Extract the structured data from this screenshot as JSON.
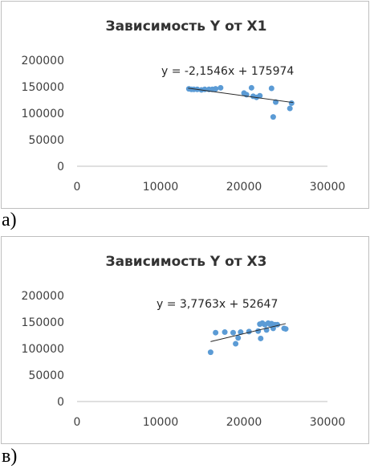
{
  "chart_data": [
    {
      "type": "scatter",
      "title": "Зависимость Y от X1",
      "xlabel": "",
      "ylabel": "",
      "xlim": [
        0,
        30000
      ],
      "ylim": [
        0,
        200000
      ],
      "x_ticks": [
        "0",
        "10000",
        "20000",
        "30000"
      ],
      "y_ticks": [
        "0",
        "50000",
        "100000",
        "150000",
        "200000"
      ],
      "trend_equation": "y = -2,1546x + 175974",
      "trend": {
        "slope": -2.1546,
        "intercept": 175974,
        "x_range": [
          13300,
          25900
        ]
      },
      "grid": false,
      "legend": "none",
      "points": [
        {
          "x": 13400,
          "y": 146000
        },
        {
          "x": 13700,
          "y": 145000
        },
        {
          "x": 14000,
          "y": 145000
        },
        {
          "x": 14400,
          "y": 145000
        },
        {
          "x": 14900,
          "y": 144000
        },
        {
          "x": 15300,
          "y": 145000
        },
        {
          "x": 15800,
          "y": 145000
        },
        {
          "x": 16200,
          "y": 145000
        },
        {
          "x": 16600,
          "y": 146000
        },
        {
          "x": 17200,
          "y": 148000
        },
        {
          "x": 20000,
          "y": 138000
        },
        {
          "x": 20300,
          "y": 135000
        },
        {
          "x": 20900,
          "y": 148000
        },
        {
          "x": 21100,
          "y": 132000
        },
        {
          "x": 21500,
          "y": 130000
        },
        {
          "x": 21900,
          "y": 133000
        },
        {
          "x": 23300,
          "y": 147000
        },
        {
          "x": 23500,
          "y": 93000
        },
        {
          "x": 23800,
          "y": 121000
        },
        {
          "x": 25500,
          "y": 109000
        },
        {
          "x": 25700,
          "y": 119000
        }
      ],
      "subfigure_label": "а)"
    },
    {
      "type": "scatter",
      "title": "Зависимость Y от X3",
      "xlabel": "",
      "ylabel": "",
      "xlim": [
        0,
        30000
      ],
      "ylim": [
        0,
        200000
      ],
      "x_ticks": [
        "0",
        "10000",
        "20000",
        "30000"
      ],
      "y_ticks": [
        "0",
        "50000",
        "100000",
        "150000",
        "200000"
      ],
      "trend_equation": "y = 3,7763x + 52647",
      "trend": {
        "slope": 3.7763,
        "intercept": 52647,
        "x_range": [
          16000,
          25000
        ]
      },
      "grid": false,
      "legend": "none",
      "points": [
        {
          "x": 16000,
          "y": 93000
        },
        {
          "x": 16600,
          "y": 130000
        },
        {
          "x": 17700,
          "y": 131000
        },
        {
          "x": 18700,
          "y": 130000
        },
        {
          "x": 19000,
          "y": 109000
        },
        {
          "x": 19300,
          "y": 120000
        },
        {
          "x": 19600,
          "y": 131000
        },
        {
          "x": 20600,
          "y": 132000
        },
        {
          "x": 21700,
          "y": 133000
        },
        {
          "x": 21900,
          "y": 146000
        },
        {
          "x": 22000,
          "y": 119000
        },
        {
          "x": 22200,
          "y": 148000
        },
        {
          "x": 22500,
          "y": 145000
        },
        {
          "x": 22700,
          "y": 135000
        },
        {
          "x": 22900,
          "y": 148000
        },
        {
          "x": 23100,
          "y": 146000
        },
        {
          "x": 23300,
          "y": 147000
        },
        {
          "x": 23500,
          "y": 138000
        },
        {
          "x": 23700,
          "y": 145000
        },
        {
          "x": 24000,
          "y": 145000
        },
        {
          "x": 24800,
          "y": 138000
        },
        {
          "x": 25000,
          "y": 137000
        }
      ],
      "subfigure_label": "в)"
    }
  ]
}
